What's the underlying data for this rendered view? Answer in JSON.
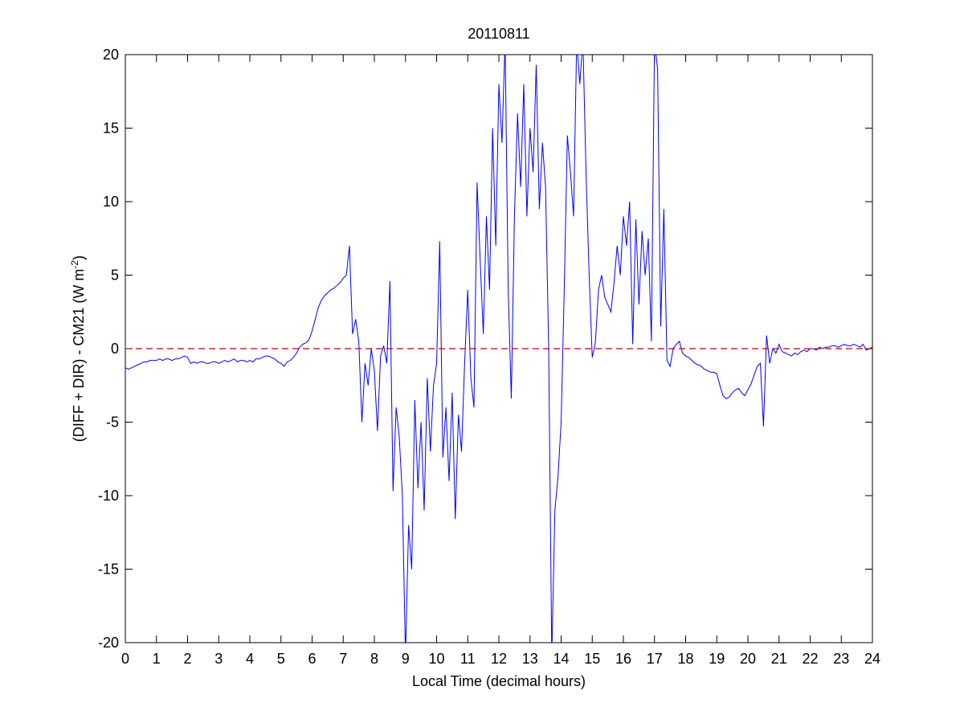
{
  "chart_data": {
    "type": "line",
    "title": "20110811",
    "xlabel": "Local Time (decimal hours)",
    "ylabel": [
      "(DIFF + DIR) - CM21 (W m",
      "-2",
      ")"
    ],
    "xlim": [
      0,
      24
    ],
    "ylim": [
      -20,
      20
    ],
    "xticks": [
      0,
      1,
      2,
      3,
      4,
      5,
      6,
      7,
      8,
      9,
      10,
      11,
      12,
      13,
      14,
      15,
      16,
      17,
      18,
      19,
      20,
      21,
      22,
      23,
      24
    ],
    "yticks": [
      -20,
      -15,
      -10,
      -5,
      0,
      5,
      10,
      15,
      20
    ],
    "reference_line": {
      "y": 0,
      "color": "#c00000",
      "style": "dashed"
    },
    "x": [
      0,
      0.1,
      0.2,
      0.3,
      0.4,
      0.5,
      0.6,
      0.7,
      0.8,
      0.9,
      1,
      1.1,
      1.2,
      1.3,
      1.4,
      1.5,
      1.6,
      1.7,
      1.8,
      1.9,
      2,
      2.1,
      2.2,
      2.3,
      2.4,
      2.5,
      2.6,
      2.7,
      2.8,
      2.9,
      3,
      3.1,
      3.2,
      3.3,
      3.4,
      3.5,
      3.6,
      3.7,
      3.8,
      3.9,
      4,
      4.1,
      4.2,
      4.3,
      4.4,
      4.5,
      4.6,
      4.7,
      4.8,
      4.9,
      5,
      5.1,
      5.2,
      5.3,
      5.4,
      5.5,
      5.6,
      5.7,
      5.8,
      5.9,
      6,
      6.1,
      6.2,
      6.3,
      6.4,
      6.5,
      6.6,
      6.7,
      6.8,
      6.9,
      7,
      7.1,
      7.2,
      7.3,
      7.4,
      7.5,
      7.6,
      7.7,
      7.8,
      7.9,
      8,
      8.1,
      8.2,
      8.3,
      8.4,
      8.5,
      8.6,
      8.7,
      8.8,
      8.9,
      9,
      9.1,
      9.2,
      9.3,
      9.4,
      9.5,
      9.6,
      9.7,
      9.8,
      9.9,
      10,
      10.1,
      10.2,
      10.3,
      10.4,
      10.5,
      10.6,
      10.7,
      10.8,
      10.9,
      11,
      11.1,
      11.2,
      11.3,
      11.4,
      11.5,
      11.6,
      11.7,
      11.8,
      11.9,
      12,
      12.1,
      12.2,
      12.3,
      12.4,
      12.5,
      12.6,
      12.7,
      12.8,
      12.9,
      13,
      13.1,
      13.2,
      13.3,
      13.4,
      13.5,
      13.6,
      13.7,
      13.8,
      13.9,
      14,
      14.1,
      14.2,
      14.3,
      14.4,
      14.5,
      14.6,
      14.7,
      14.8,
      14.9,
      15,
      15.1,
      15.2,
      15.3,
      15.4,
      15.5,
      15.6,
      15.7,
      15.8,
      15.9,
      16,
      16.1,
      16.2,
      16.3,
      16.4,
      16.5,
      16.6,
      16.7,
      16.8,
      16.9,
      17,
      17.1,
      17.2,
      17.3,
      17.4,
      17.5,
      17.6,
      17.7,
      17.8,
      17.9,
      18,
      18.1,
      18.2,
      18.3,
      18.4,
      18.5,
      18.6,
      18.7,
      18.8,
      18.9,
      19,
      19.1,
      19.2,
      19.3,
      19.4,
      19.5,
      19.6,
      19.7,
      19.8,
      19.9,
      20,
      20.1,
      20.2,
      20.3,
      20.4,
      20.5,
      20.6,
      20.7,
      20.8,
      20.9,
      21,
      21.1,
      21.2,
      21.3,
      21.4,
      21.5,
      21.6,
      21.7,
      21.8,
      21.9,
      22,
      22.1,
      22.2,
      22.3,
      22.4,
      22.5,
      22.6,
      22.7,
      22.8,
      22.9,
      23,
      23.1,
      23.2,
      23.3,
      23.4,
      23.5,
      23.6,
      23.7,
      23.8,
      23.9,
      24
    ],
    "series": [
      {
        "color": "#0000ff",
        "values": [
          -1.3,
          -1.4,
          -1.3,
          -1.2,
          -1.1,
          -1.0,
          -0.9,
          -0.9,
          -0.8,
          -0.8,
          -0.8,
          -0.7,
          -0.8,
          -0.7,
          -0.7,
          -0.8,
          -0.7,
          -0.7,
          -0.6,
          -0.5,
          -0.6,
          -1.0,
          -0.9,
          -1.0,
          -0.9,
          -0.9,
          -1.0,
          -1.0,
          -0.9,
          -0.9,
          -1.0,
          -0.9,
          -0.8,
          -0.9,
          -0.8,
          -0.7,
          -0.9,
          -0.8,
          -0.8,
          -0.9,
          -0.8,
          -0.9,
          -0.7,
          -0.7,
          -0.6,
          -0.5,
          -0.5,
          -0.6,
          -0.7,
          -0.9,
          -1.0,
          -1.2,
          -0.9,
          -0.8,
          -0.6,
          -0.3,
          0.1,
          0.3,
          0.4,
          0.6,
          1.2,
          2.0,
          2.8,
          3.3,
          3.6,
          3.8,
          4.0,
          4.1,
          4.3,
          4.5,
          4.8,
          5.0,
          7.0,
          1.0,
          2.0,
          0.5,
          -5.0,
          -1.0,
          -2.5,
          0.0,
          -1.5,
          -5.6,
          -0.5,
          0.2,
          -1.0,
          4.6,
          -9.7,
          -4.0,
          -6.0,
          -10.0,
          -21,
          -12,
          -15,
          -3.5,
          -9.5,
          -5.0,
          -11.0,
          -2.0,
          -7.0,
          -2.5,
          -1.0,
          7.3,
          -7.4,
          -4.0,
          -9.0,
          -3.0,
          -11.6,
          -4.5,
          -7.0,
          -1.0,
          4.0,
          -2.0,
          -4.0,
          11.3,
          6.0,
          1.0,
          9.0,
          4.0,
          15.0,
          7.0,
          18.0,
          14.0,
          21.0,
          4.0,
          -3.4,
          9.0,
          16.0,
          11.0,
          18.0,
          9.0,
          15.0,
          12.0,
          19.3,
          9.5,
          14.0,
          11.0,
          0.0,
          -21,
          -11.0,
          -8.7,
          -5.0,
          4.0,
          14.5,
          12.0,
          9.0,
          21.0,
          18.0,
          21.0,
          12.0,
          5.0,
          -0.6,
          0.4,
          4.0,
          5.0,
          3.5,
          3.0,
          2.5,
          4.5,
          7.0,
          5.0,
          9.0,
          7.0,
          10.0,
          0.3,
          8.8,
          3.0,
          8.0,
          5.0,
          7.5,
          0.5,
          21.0,
          19.0,
          1.5,
          9.5,
          -0.8,
          -1.2,
          0.0,
          0.3,
          0.5,
          -0.3,
          -0.5,
          -0.6,
          -0.8,
          -1.0,
          -1.1,
          -1.2,
          -1.4,
          -1.5,
          -1.6,
          -1.6,
          -1.7,
          -2.5,
          -3.2,
          -3.4,
          -3.3,
          -3.0,
          -2.8,
          -2.7,
          -3.0,
          -3.2,
          -2.8,
          -2.4,
          -1.8,
          -1.2,
          -1.0,
          -5.3,
          0.9,
          -1.0,
          0.0,
          -0.3,
          0.3,
          -0.2,
          -0.3,
          -0.4,
          -0.5,
          -0.3,
          -0.4,
          -0.2,
          -0.1,
          -0.2,
          0.0,
          0.0,
          -0.1,
          0.1,
          0.0,
          0.1,
          0.1,
          0.2,
          0.2,
          0.1,
          0.2,
          0.3,
          0.2,
          0.2,
          0.3,
          0.2,
          0.1,
          0.3,
          -0.1,
          0.0,
          0.1
        ]
      }
    ]
  }
}
